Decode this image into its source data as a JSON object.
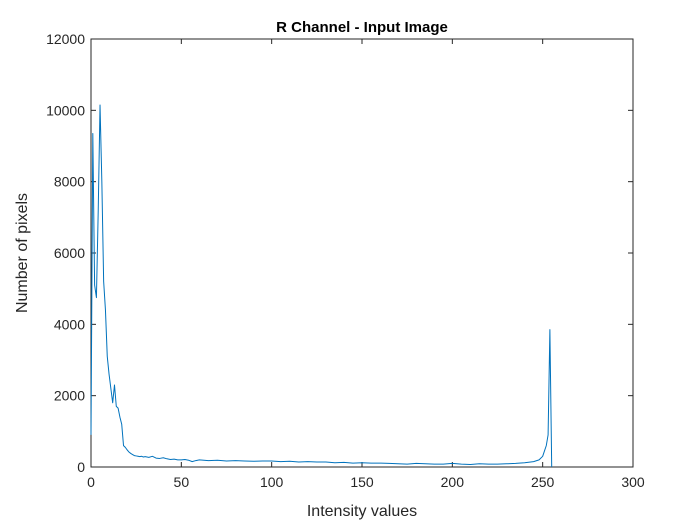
{
  "chart_data": {
    "type": "line",
    "title": "R Channel - Input Image",
    "xlabel": "Intensity values",
    "ylabel": "Number of pixels",
    "xlim": [
      0,
      300
    ],
    "ylim": [
      0,
      12000
    ],
    "xticks": [
      0,
      50,
      100,
      150,
      200,
      250,
      300
    ],
    "yticks": [
      0,
      2000,
      4000,
      6000,
      8000,
      10000,
      12000
    ],
    "xtick_labels": [
      "0",
      "50",
      "100",
      "150",
      "200",
      "250",
      "300"
    ],
    "ytick_labels": [
      "0",
      "2000",
      "4000",
      "6000",
      "8000",
      "10000",
      "12000"
    ],
    "grid": false,
    "line_color": "#0072BD",
    "axis_color": "#262626",
    "series": [
      {
        "x": [
          0,
          1,
          2,
          3,
          4,
          5,
          6,
          7,
          8,
          9,
          10,
          11,
          12,
          13,
          14,
          15,
          16,
          17,
          18,
          19,
          20,
          21,
          22,
          23,
          24,
          25,
          26,
          27,
          28,
          29,
          30,
          32,
          34,
          36,
          38,
          40,
          42,
          44,
          46,
          48,
          50,
          52,
          54,
          56,
          58,
          60,
          65,
          70,
          75,
          80,
          85,
          90,
          95,
          100,
          105,
          110,
          115,
          120,
          125,
          130,
          135,
          140,
          145,
          150,
          155,
          160,
          165,
          170,
          175,
          180,
          185,
          190,
          195,
          200,
          205,
          210,
          215,
          220,
          225,
          230,
          235,
          240,
          245,
          248,
          250,
          251,
          252,
          253,
          254,
          255
        ],
        "y": [
          900,
          9350,
          5100,
          4750,
          7200,
          10150,
          8000,
          5200,
          4400,
          3100,
          2600,
          2200,
          1800,
          2300,
          1700,
          1650,
          1400,
          1200,
          600,
          550,
          480,
          420,
          380,
          350,
          320,
          310,
          300,
          290,
          300,
          280,
          290,
          270,
          300,
          250,
          240,
          260,
          230,
          210,
          220,
          200,
          200,
          210,
          190,
          150,
          180,
          200,
          180,
          190,
          170,
          180,
          170,
          160,
          170,
          170,
          150,
          160,
          140,
          150,
          140,
          140,
          120,
          130,
          110,
          120,
          110,
          110,
          100,
          90,
          80,
          100,
          90,
          80,
          80,
          100,
          80,
          70,
          90,
          80,
          80,
          90,
          100,
          120,
          150,
          200,
          300,
          450,
          600,
          900,
          3850,
          0
        ]
      }
    ]
  }
}
